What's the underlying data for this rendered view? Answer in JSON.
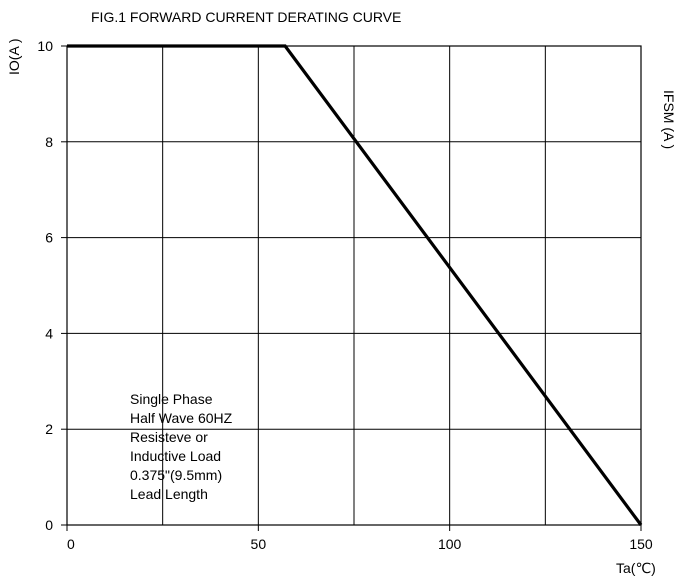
{
  "chart_data": {
    "type": "line",
    "title": "FIG.1  FORWARD CURRENT  DERATING CURVE",
    "ylabel": "IO(A )",
    "xlabel": "Ta(℃)",
    "right_axis_label_fragment": "IFSM (A )",
    "xlim": [
      0,
      150
    ],
    "ylim": [
      0,
      10
    ],
    "grid": true,
    "x_ticks": [
      0,
      50,
      100,
      150
    ],
    "y_ticks": [
      0,
      2,
      4,
      6,
      8,
      10
    ],
    "series": [
      {
        "x": [
          0,
          57,
          150
        ],
        "y": [
          10,
          10,
          0
        ],
        "color": "#000000"
      }
    ],
    "annotation": [
      "Single Phase",
      "Half Wave 60HZ",
      "Resisteve or",
      "Inductive Load",
      "0.375\"(9.5mm)",
      "Lead Length"
    ]
  }
}
